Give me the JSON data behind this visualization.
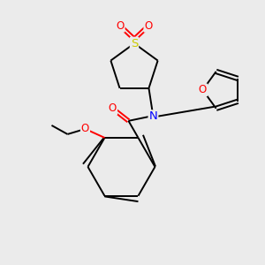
{
  "bg_color": "#ebebeb",
  "atom_colors": {
    "C": "#000000",
    "N": "#0000FF",
    "O": "#FF0000",
    "S": "#CCCC00"
  },
  "bond_lw": 1.4,
  "font_size": 8.5,
  "fig_size": [
    3.0,
    3.0
  ],
  "dpi": 100
}
